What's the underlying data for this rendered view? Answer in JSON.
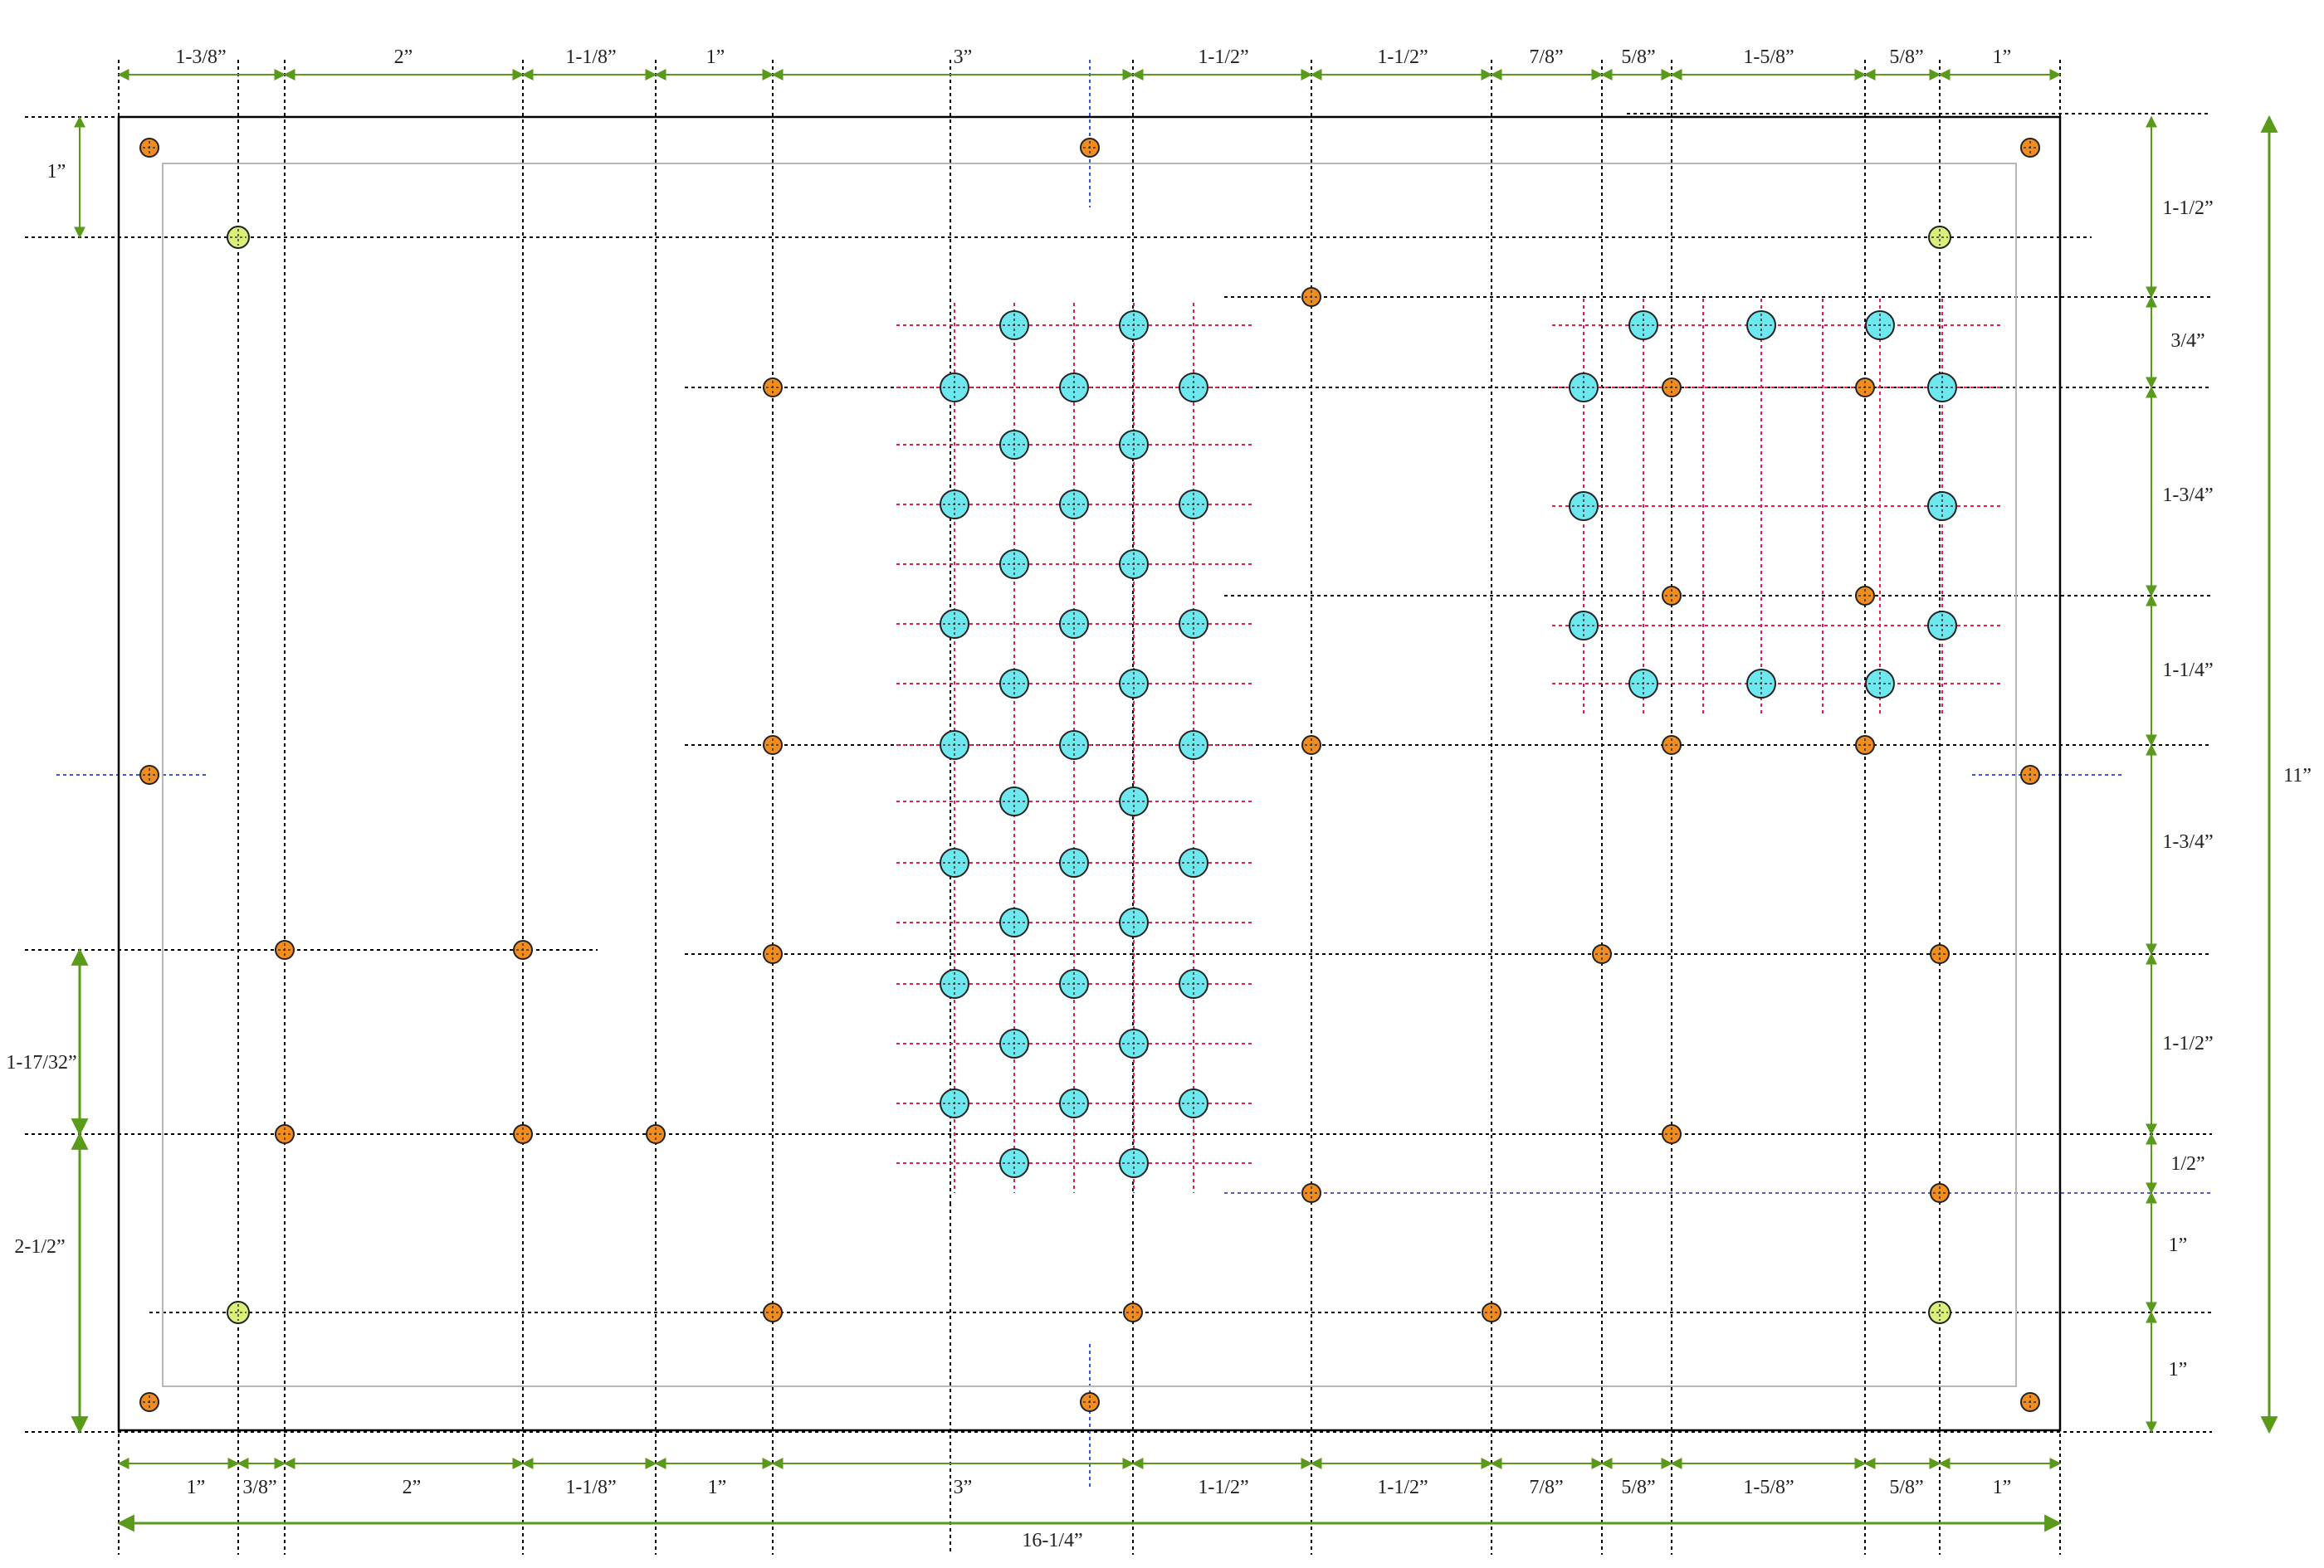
{
  "colors": {
    "board_outline": "#000000",
    "inner_outline": "#b8b8b8",
    "guide_line": "#000000",
    "center_guide": "#3355dd",
    "grid_guide": "#dd2244",
    "dimension_arrow": "#5a9a1a",
    "mount_hole": "#f28c1c",
    "key_hole": "#6ee8ef",
    "alignment_hole": "#d8f07a"
  },
  "top_dimensions": [
    "1-3/8”",
    "2”",
    "1-1/8”",
    "1”",
    "3”",
    "1-1/2”",
    "1-1/2”",
    "7/8”",
    "5/8”",
    "1-5/8”",
    "5/8”",
    "1”"
  ],
  "bottom_dimensions": [
    "1”",
    "3/8”",
    "2”",
    "1-1/8”",
    "1”",
    "3”",
    "1-1/2”",
    "1-1/2”",
    "7/8”",
    "5/8”",
    "1-5/8”",
    "5/8”",
    "1”"
  ],
  "overall_width": "16-1/4”",
  "overall_height": "11”",
  "right_dimensions": [
    "1-1/2”",
    "3/4”",
    "1-3/4”",
    "1-1/4”",
    "1-3/4”",
    "1-1/2”",
    "1/2”",
    "1”",
    "1”"
  ],
  "left_dimensions": [
    "1”",
    "1-17/32”",
    "2-1/2”"
  ]
}
